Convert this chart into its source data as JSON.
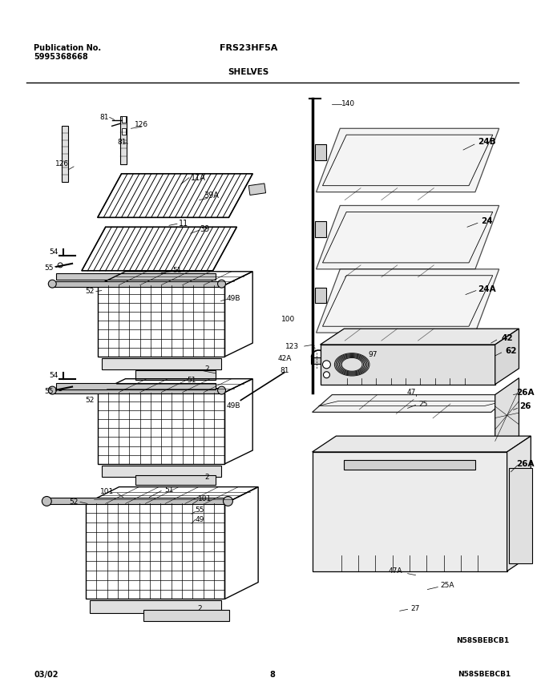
{
  "title_left_line1": "Publication No.",
  "title_left_line2": "5995368668",
  "title_center": "FRS23HF5A",
  "subtitle": "SHELVES",
  "footer_left": "03/02",
  "footer_center": "8",
  "footer_right": "N58SBEBCB1",
  "bg_color": "#ffffff",
  "line_color": "#000000",
  "text_color": "#000000",
  "title_fontsize": 7.5,
  "label_fontsize": 7,
  "bold_label_fontsize": 8,
  "page_width": 6.8,
  "page_height": 8.71,
  "dpi": 100
}
